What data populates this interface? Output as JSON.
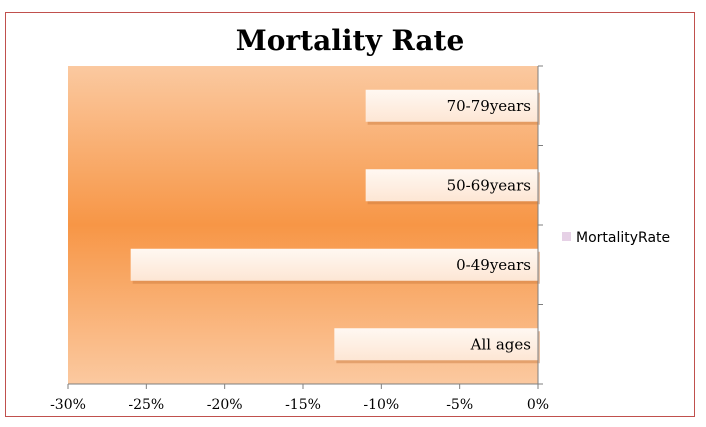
{
  "chart_data": {
    "type": "bar",
    "orientation": "horizontal",
    "title": "Mortality Rate",
    "xlabel": "",
    "ylabel": "",
    "categories": [
      "All ages",
      "0-49years",
      "50-69years",
      "70-79years"
    ],
    "series": [
      {
        "name": "MortalityRate",
        "values": [
          -13,
          -26,
          -11,
          -11
        ]
      }
    ],
    "xlim": [
      -30,
      0
    ],
    "xticks": [
      -30,
      -25,
      -20,
      -15,
      -10,
      -5,
      0
    ],
    "xtick_labels": [
      "-30%",
      "-25%",
      "-20%",
      "-15%",
      "-10%",
      "-5%",
      "0%"
    ],
    "grid": false,
    "legend_position": "right",
    "colors": {
      "plot_gradient_center": "#f79646",
      "plot_gradient_edge": "#fbc9a0",
      "bar_fill": "#fde6d4",
      "frame_border": "#c0504d",
      "legend_marker": "#e6d1e6"
    }
  }
}
